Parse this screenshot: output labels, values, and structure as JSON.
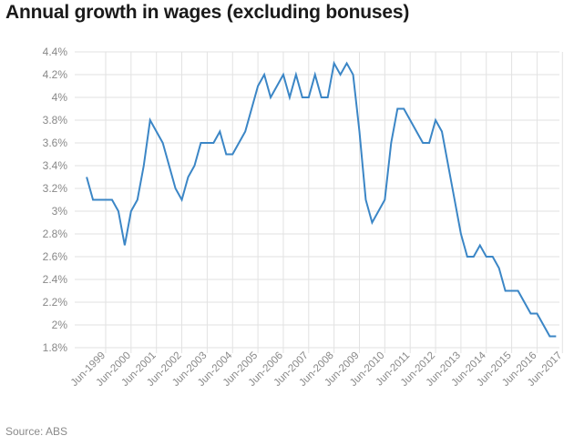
{
  "title": "Annual growth in wages (excluding bonuses)",
  "source": "Source: ABS",
  "colors": {
    "line": "#3b86c6",
    "grid": "#e2e2e2",
    "tick_text": "#888888"
  },
  "chart_data": {
    "type": "line",
    "title": "Annual growth in wages (excluding bonuses)",
    "xlabel": "",
    "ylabel": "",
    "ylim": [
      1.8,
      4.4
    ],
    "grid": true,
    "y_ticks": [
      "1.8%",
      "2%",
      "2.2%",
      "2.4%",
      "2.6%",
      "2.8%",
      "3%",
      "3.2%",
      "3.4%",
      "3.6%",
      "3.8%",
      "4%",
      "4.2%",
      "4.4%"
    ],
    "y_tick_values": [
      1.8,
      2.0,
      2.2,
      2.4,
      2.6,
      2.8,
      3.0,
      3.2,
      3.4,
      3.6,
      3.8,
      4.0,
      4.2,
      4.4
    ],
    "x_tick_labels": [
      "Jun-1999",
      "Jun-2000",
      "Jun-2001",
      "Jun-2002",
      "Jun-2003",
      "Jun-2004",
      "Jun-2005",
      "Jun-2006",
      "Jun-2007",
      "Jun-2008",
      "Jun-2009",
      "Jun-2010",
      "Jun-2011",
      "Jun-2012",
      "Jun-2013",
      "Jun-2014",
      "Jun-2015",
      "Jun-2016",
      "Jun-2017"
    ],
    "x_start": "Sep-1998",
    "x_step": "quarter",
    "values": [
      3.3,
      3.1,
      3.1,
      3.1,
      3.1,
      3.0,
      2.7,
      3.0,
      3.1,
      3.4,
      3.8,
      3.7,
      3.6,
      3.4,
      3.2,
      3.1,
      3.3,
      3.4,
      3.6,
      3.6,
      3.6,
      3.7,
      3.5,
      3.5,
      3.6,
      3.7,
      3.9,
      4.1,
      4.2,
      4.0,
      4.1,
      4.2,
      4.0,
      4.2,
      4.0,
      4.0,
      4.2,
      4.0,
      4.0,
      4.3,
      4.2,
      4.3,
      4.2,
      3.7,
      3.1,
      2.9,
      3.0,
      3.1,
      3.6,
      3.9,
      3.9,
      3.8,
      3.7,
      3.6,
      3.6,
      3.8,
      3.7,
      3.4,
      3.1,
      2.8,
      2.6,
      2.6,
      2.7,
      2.6,
      2.6,
      2.5,
      2.3,
      2.3,
      2.3,
      2.2,
      2.1,
      2.1,
      2.0,
      1.9,
      1.9
    ]
  }
}
